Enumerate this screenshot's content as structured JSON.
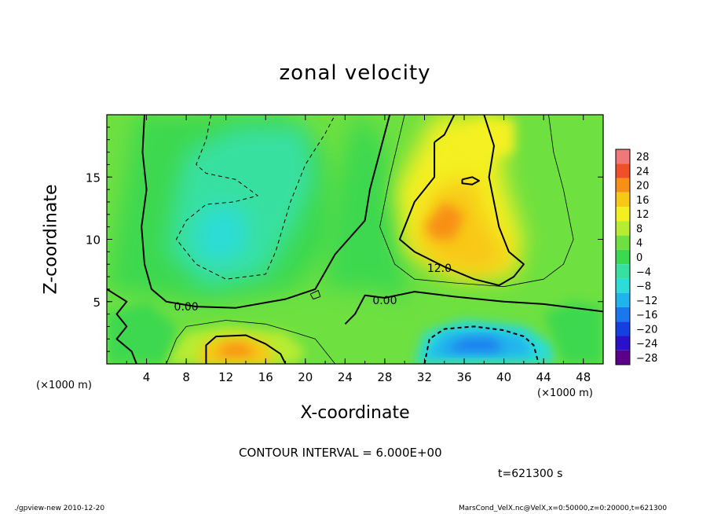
{
  "chart_data": {
    "type": "heatmap",
    "title": "zonal velocity",
    "xlabel": "X-coordinate",
    "ylabel": "Z-coordinate",
    "x_unit": "(×1000 m)",
    "x_ticks": [
      4,
      8,
      12,
      16,
      20,
      24,
      28,
      32,
      36,
      40,
      44,
      48
    ],
    "y_ticks": [
      5,
      10,
      15
    ],
    "xlim": [
      0,
      50
    ],
    "ylim": [
      0,
      20
    ],
    "colorbar_levels": [
      28,
      24,
      20,
      16,
      12,
      8,
      4,
      0,
      -4,
      -8,
      -12,
      -16,
      -20,
      -24,
      -28
    ],
    "colorbar_labels": [
      "28",
      "24",
      "20",
      "16",
      "12",
      "8",
      "4",
      "0",
      "−4",
      "−8",
      "−12",
      "−16",
      "−20",
      "−24",
      "−28"
    ],
    "contour_labels": [
      {
        "text": "0.00",
        "x": 8.0,
        "z": 4.6
      },
      {
        "text": "0.00",
        "x": 28.0,
        "z": 5.1
      },
      {
        "text": "12.0",
        "x": 33.5,
        "z": 7.7
      }
    ],
    "contour_interval": "CONTOUR INTERVAL = 6.000E+00",
    "time": "t=621300 s",
    "colors": {
      "c_m28": "#5a008a",
      "c_m24": "#2a10c8",
      "c_m20": "#1440e0",
      "c_m16": "#1a78ef",
      "c_m12": "#20b4ee",
      "c_m8": "#2cdcd8",
      "c_m4": "#38e0a0",
      "c_0": "#3cd850",
      "c_4": "#6ee040",
      "c_8": "#b8ec30",
      "c_12": "#f4f020",
      "c_16": "#f8c818",
      "c_20": "#f89018",
      "c_24": "#f05028",
      "c_28": "#f07878"
    }
  },
  "footer": {
    "left": "./gpview-new  2010-12-20",
    "right": "MarsCond_VelX.nc@VelX,x=0:50000,z=0:20000,t=621300"
  }
}
